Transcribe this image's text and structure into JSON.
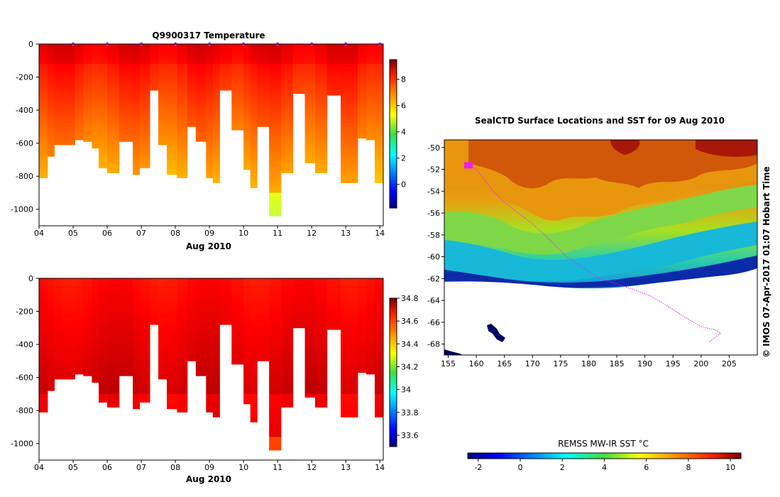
{
  "chart_data": [
    {
      "type": "heatmap",
      "title": "Q9900317  Temperature",
      "xlabel": "Aug 2010",
      "x_ticks": [
        "04",
        "05",
        "06",
        "07",
        "08",
        "09",
        "10",
        "11",
        "12",
        "13",
        "14"
      ],
      "xlim": [
        4,
        14.1
      ],
      "ylim": [
        -1100,
        0
      ],
      "y_ticks": [
        "0",
        "-200",
        "-400",
        "-600",
        "-800",
        "-1000"
      ],
      "y_tick_values": [
        0,
        -200,
        -400,
        -600,
        -800,
        -1000
      ],
      "colorbar": {
        "min": -1.8,
        "max": 9.5,
        "ticks": [
          "0",
          "2",
          "4",
          "6",
          "8"
        ],
        "tick_values": [
          0,
          2,
          4,
          6,
          8
        ],
        "colormap": "jet"
      },
      "surface_markers_days": [
        5,
        6,
        7,
        8,
        9,
        10,
        11,
        12,
        13,
        14
      ],
      "profiles": [
        {
          "day": 4.0,
          "maxdepth": 810
        },
        {
          "day": 4.25,
          "maxdepth": 680
        },
        {
          "day": 4.45,
          "maxdepth": 610
        },
        {
          "day": 4.7,
          "maxdepth": 610
        },
        {
          "day": 5.05,
          "maxdepth": 580
        },
        {
          "day": 5.3,
          "maxdepth": 590
        },
        {
          "day": 5.55,
          "maxdepth": 630
        },
        {
          "day": 5.75,
          "maxdepth": 750
        },
        {
          "day": 6.0,
          "maxdepth": 780
        },
        {
          "day": 6.35,
          "maxdepth": 590
        },
        {
          "day": 6.75,
          "maxdepth": 790
        },
        {
          "day": 6.95,
          "maxdepth": 750
        },
        {
          "day": 7.25,
          "maxdepth": 280
        },
        {
          "day": 7.5,
          "maxdepth": 610
        },
        {
          "day": 7.75,
          "maxdepth": 790
        },
        {
          "day": 8.05,
          "maxdepth": 810
        },
        {
          "day": 8.35,
          "maxdepth": 500
        },
        {
          "day": 8.6,
          "maxdepth": 590
        },
        {
          "day": 8.9,
          "maxdepth": 810
        },
        {
          "day": 9.1,
          "maxdepth": 840
        },
        {
          "day": 9.3,
          "maxdepth": 280
        },
        {
          "day": 9.65,
          "maxdepth": 520
        },
        {
          "day": 10.0,
          "maxdepth": 760
        },
        {
          "day": 10.2,
          "maxdepth": 870
        },
        {
          "day": 10.4,
          "maxdepth": 500
        },
        {
          "day": 10.75,
          "maxdepth": 1040
        },
        {
          "day": 11.1,
          "maxdepth": 780
        },
        {
          "day": 11.45,
          "maxdepth": 300
        },
        {
          "day": 11.8,
          "maxdepth": 720
        },
        {
          "day": 12.1,
          "maxdepth": 780
        },
        {
          "day": 12.45,
          "maxdepth": 310
        },
        {
          "day": 12.85,
          "maxdepth": 840
        },
        {
          "day": 13.35,
          "maxdepth": 570
        },
        {
          "day": 13.6,
          "maxdepth": 580
        },
        {
          "day": 13.85,
          "maxdepth": 840
        }
      ]
    },
    {
      "type": "heatmap",
      "title": "",
      "xlabel": "Aug 2010",
      "x_ticks": [
        "04",
        "05",
        "06",
        "07",
        "08",
        "09",
        "10",
        "11",
        "12",
        "13",
        "14"
      ],
      "xlim": [
        4,
        14.1
      ],
      "ylim": [
        -1100,
        0
      ],
      "y_ticks": [
        "0",
        "-200",
        "-400",
        "-600",
        "-800",
        "-1000"
      ],
      "y_tick_values": [
        0,
        -200,
        -400,
        -600,
        -800,
        -1000
      ],
      "colorbar": {
        "min": 33.5,
        "max": 34.8,
        "ticks": [
          "33.6",
          "33.8",
          "34",
          "34.2",
          "34.4",
          "34.6",
          "34.8"
        ],
        "tick_values": [
          33.6,
          33.8,
          34.0,
          34.2,
          34.4,
          34.6,
          34.8
        ],
        "colormap": "jet"
      }
    },
    {
      "type": "heatmap",
      "title": "SealCTD Surface Locations and SST for 09 Aug 2010",
      "x_ticks": [
        "155",
        "160",
        "165",
        "170",
        "175",
        "180",
        "185",
        "190",
        "195",
        "200",
        "205"
      ],
      "x_tick_values": [
        155,
        160,
        165,
        170,
        175,
        180,
        185,
        190,
        195,
        200,
        205
      ],
      "xlim": [
        154.3,
        210
      ],
      "y_ticks": [
        "-50",
        "-52",
        "-54",
        "-56",
        "-58",
        "-60",
        "-62",
        "-64",
        "-66",
        "-68"
      ],
      "y_tick_values": [
        -50,
        -52,
        -54,
        -56,
        -58,
        -60,
        -62,
        -64,
        -66,
        -68
      ],
      "ylim": [
        -69,
        -49.3
      ],
      "credit": "© IMOS 07-Apr-2017 01:07 Hobart Time",
      "colorbar": {
        "label": "REMSS MW-IR SST °C",
        "min": -2.5,
        "max": 10.5,
        "ticks": [
          "-2",
          "0",
          "2",
          "4",
          "6",
          "8",
          "10"
        ],
        "tick_values": [
          -2,
          0,
          2,
          4,
          6,
          8,
          10
        ],
        "colormap": "jet"
      },
      "track": [
        [
          158.6,
          -51.6
        ],
        [
          160,
          -52
        ],
        [
          161.5,
          -53
        ],
        [
          163,
          -54
        ],
        [
          165,
          -55
        ],
        [
          167.5,
          -56
        ],
        [
          170,
          -57
        ],
        [
          173,
          -58.4
        ],
        [
          176,
          -60
        ],
        [
          179,
          -61
        ],
        [
          182,
          -62
        ],
        [
          185,
          -62.5
        ],
        [
          188,
          -63
        ],
        [
          191,
          -63.6
        ],
        [
          194,
          -64.5
        ],
        [
          197,
          -65.5
        ],
        [
          200,
          -66.4
        ],
        [
          202.5,
          -66.7
        ],
        [
          203.5,
          -67
        ],
        [
          202.5,
          -67.4
        ],
        [
          201.5,
          -67.8
        ]
      ]
    }
  ]
}
